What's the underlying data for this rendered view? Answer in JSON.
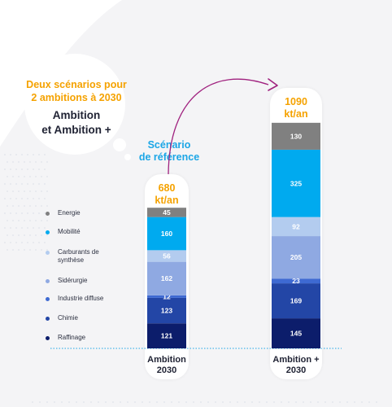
{
  "bubble": {
    "line1": "Deux scénarios pour",
    "line2": "2 ambitions à 2030",
    "line3": "Ambition",
    "line4": "et Ambition +"
  },
  "scenario_label": {
    "line1": "Scénario",
    "line2": "de référence"
  },
  "colors": {
    "energie": "#808080",
    "mobilite": "#00aaef",
    "carburants": "#b3ccef",
    "siderurgie": "#8fa9e2",
    "industrie": "#3e6ad2",
    "chimie": "#2346a6",
    "raffinage": "#0c1d6b",
    "highlight": "#f5a200",
    "scenario": "#1ba6e6",
    "arrow": "#a0227f"
  },
  "chart_data": {
    "type": "bar",
    "stacked": true,
    "categories": [
      "Ambition 2030",
      "Ambition + 2030"
    ],
    "totals": [
      "680 kt/an",
      "1090 kt/an"
    ],
    "legend": [
      "Energie",
      "Mobilité",
      "Carburants de synthèse",
      "Sidérurgie",
      "Industrie diffuse",
      "Chimie",
      "Raffinage"
    ],
    "series": [
      {
        "name": "Raffinage",
        "values": [
          121,
          145
        ]
      },
      {
        "name": "Chimie",
        "values": [
          123,
          169
        ]
      },
      {
        "name": "Industrie diffuse",
        "values": [
          12,
          23
        ]
      },
      {
        "name": "Sidérurgie",
        "values": [
          162,
          205
        ]
      },
      {
        "name": "Carburants de synthèse",
        "values": [
          56,
          92
        ]
      },
      {
        "name": "Mobilité",
        "values": [
          160,
          325
        ]
      },
      {
        "name": "Energie",
        "values": [
          45,
          130
        ]
      }
    ]
  }
}
